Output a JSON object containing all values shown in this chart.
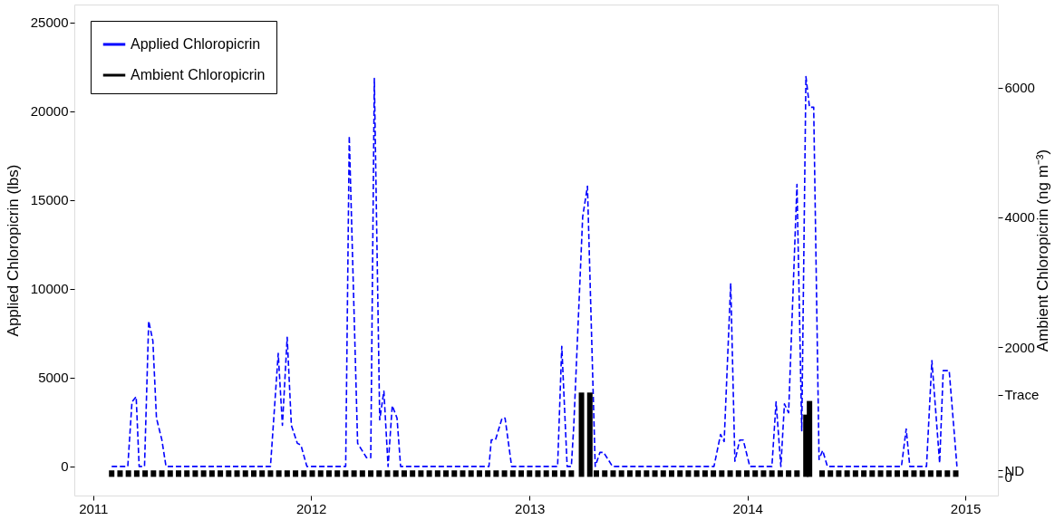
{
  "chart_data": {
    "type": "line",
    "ylabel": "Applied Chloropicrin (lbs)",
    "y2label": "Ambient Chloropicrin (ng m⁻³)",
    "xlim": [
      "2010-12-08",
      "2015-02-17"
    ],
    "xticks": [
      {
        "value": "2011-01-01",
        "label": "2011"
      },
      {
        "value": "2012-01-01",
        "label": "2012"
      },
      {
        "value": "2013-01-01",
        "label": "2013"
      },
      {
        "value": "2014-01-01",
        "label": "2014"
      },
      {
        "value": "2015-01-01",
        "label": "2015"
      }
    ],
    "ylim": [
      -1640,
      26000
    ],
    "yticks": [
      0,
      5000,
      10000,
      15000,
      20000,
      25000
    ],
    "y2lim": [
      -288,
      7282
    ],
    "y2ticks": [
      0,
      2000,
      4000,
      6000,
      {
        "value": 1267,
        "label": "Trace"
      },
      {
        "value": 100,
        "label": "ND"
      }
    ],
    "grid": false,
    "legend": "top left",
    "marker": "none",
    "series": [
      {
        "name": "Applied Chloropicrin",
        "color": "#0000ff",
        "line_style": "dashed",
        "x": [
          "2011-02-01",
          "2011-02-28",
          "2011-03-07",
          "2011-03-14",
          "2011-03-19",
          "2011-03-28",
          "2011-04-04",
          "2011-04-11",
          "2011-04-17",
          "2011-04-26",
          "2011-05-03",
          "2011-10-25",
          "2011-11-07",
          "2011-11-14",
          "2011-11-22",
          "2011-11-29",
          "2011-12-09",
          "2011-12-15",
          "2011-12-25",
          "2012-02-28",
          "2012-03-05",
          "2012-03-19",
          "2012-04-03",
          "2012-04-10",
          "2012-04-16",
          "2012-04-25",
          "2012-05-02",
          "2012-05-09",
          "2012-05-16",
          "2012-05-24",
          "2012-05-30",
          "2012-10-25",
          "2012-10-29",
          "2012-11-05",
          "2012-11-16",
          "2012-11-21",
          "2012-12-02",
          "2013-02-17",
          "2013-02-24",
          "2013-03-05",
          "2013-03-12",
          "2013-03-16",
          "2013-03-31",
          "2013-04-08",
          "2013-04-21",
          "2013-04-29",
          "2013-05-05",
          "2013-05-20",
          "2013-11-06",
          "2013-11-17",
          "2013-11-23",
          "2013-12-04",
          "2013-12-11",
          "2013-12-19",
          "2013-12-25",
          "2014-01-05",
          "2014-02-11",
          "2014-02-18",
          "2014-02-26",
          "2014-03-04",
          "2014-03-11",
          "2014-03-25",
          "2014-04-02",
          "2014-04-09",
          "2014-04-15",
          "2014-04-22",
          "2014-05-01",
          "2014-05-07",
          "2014-05-15",
          "2014-09-16",
          "2014-09-24",
          "2014-09-30",
          "2014-10-28",
          "2014-11-06",
          "2014-11-19",
          "2014-11-25",
          "2014-12-05",
          "2014-12-18"
        ],
        "values": [
          0,
          0,
          3630,
          3930,
          0,
          0,
          8180,
          7070,
          2720,
          1500,
          0,
          0,
          6360,
          2310,
          7270,
          2310,
          1300,
          1200,
          0,
          0,
          18600,
          1300,
          490,
          490,
          21840,
          2620,
          4240,
          0,
          3420,
          2720,
          0,
          0,
          1500,
          1500,
          2720,
          2720,
          0,
          0,
          6760,
          0,
          0,
          2210,
          14050,
          15770,
          0,
          790,
          790,
          0,
          0,
          1800,
          1400,
          10310,
          290,
          1480,
          1480,
          0,
          0,
          3630,
          0,
          3520,
          3020,
          15870,
          2010,
          21940,
          20220,
          20220,
          390,
          900,
          0,
          0,
          2110,
          0,
          0,
          5960,
          190,
          5390,
          5390,
          0
        ]
      },
      {
        "name": "Ambient Chloropicrin",
        "color": "#000000",
        "type": "bar",
        "axis": "y2",
        "x": [
          "2011-02-01",
          "2011-02-15",
          "2011-03-01",
          "2011-03-15",
          "2011-03-29",
          "2011-04-12",
          "2011-04-26",
          "2011-05-10",
          "2011-05-24",
          "2011-06-07",
          "2011-06-21",
          "2011-07-05",
          "2011-07-19",
          "2011-08-02",
          "2011-08-16",
          "2011-08-30",
          "2011-09-13",
          "2011-09-27",
          "2011-10-11",
          "2011-10-25",
          "2011-11-08",
          "2011-11-22",
          "2011-12-06",
          "2011-12-20",
          "2012-01-03",
          "2012-01-17",
          "2012-01-31",
          "2012-02-14",
          "2012-02-28",
          "2012-03-13",
          "2012-03-27",
          "2012-04-10",
          "2012-04-24",
          "2012-05-08",
          "2012-05-22",
          "2012-06-05",
          "2012-06-19",
          "2012-07-03",
          "2012-07-17",
          "2012-07-31",
          "2012-08-14",
          "2012-08-28",
          "2012-09-11",
          "2012-09-25",
          "2012-10-09",
          "2012-10-23",
          "2012-11-06",
          "2012-11-20",
          "2012-12-04",
          "2012-12-18",
          "2013-01-01",
          "2013-01-15",
          "2013-01-29",
          "2013-02-12",
          "2013-02-26",
          "2013-03-12",
          "2013-03-29",
          "2013-04-12",
          "2013-04-23",
          "2013-05-07",
          "2013-05-21",
          "2013-06-04",
          "2013-06-18",
          "2013-07-02",
          "2013-07-16",
          "2013-07-30",
          "2013-08-13",
          "2013-08-27",
          "2013-09-10",
          "2013-09-24",
          "2013-10-08",
          "2013-10-22",
          "2013-11-05",
          "2013-11-19",
          "2013-12-03",
          "2013-12-17",
          "2013-12-31",
          "2014-01-14",
          "2014-01-28",
          "2014-02-11",
          "2014-02-25",
          "2014-03-11",
          "2014-03-25",
          "2014-04-09",
          "2014-04-15",
          "2014-05-06",
          "2014-05-20",
          "2014-06-03",
          "2014-06-17",
          "2014-07-01",
          "2014-07-15",
          "2014-07-29",
          "2014-08-12",
          "2014-08-26",
          "2014-09-09",
          "2014-09-23",
          "2014-10-07",
          "2014-10-21",
          "2014-11-04",
          "2014-11-18",
          "2014-12-02",
          "2014-12-16"
        ],
        "values": [
          100,
          100,
          100,
          100,
          100,
          100,
          100,
          100,
          100,
          100,
          100,
          100,
          100,
          100,
          100,
          100,
          100,
          100,
          100,
          100,
          100,
          100,
          100,
          100,
          100,
          100,
          100,
          100,
          100,
          100,
          100,
          100,
          100,
          100,
          100,
          100,
          100,
          100,
          100,
          100,
          100,
          100,
          100,
          100,
          100,
          100,
          100,
          100,
          100,
          100,
          100,
          100,
          100,
          100,
          100,
          100,
          1300,
          1300,
          100,
          100,
          100,
          100,
          100,
          100,
          100,
          100,
          100,
          100,
          100,
          100,
          100,
          100,
          100,
          100,
          100,
          100,
          100,
          100,
          100,
          100,
          100,
          100,
          100,
          960,
          1170,
          100,
          100,
          100,
          100,
          100,
          100,
          100,
          100,
          100,
          100,
          100,
          100,
          100,
          100,
          100,
          100,
          100
        ]
      }
    ]
  }
}
